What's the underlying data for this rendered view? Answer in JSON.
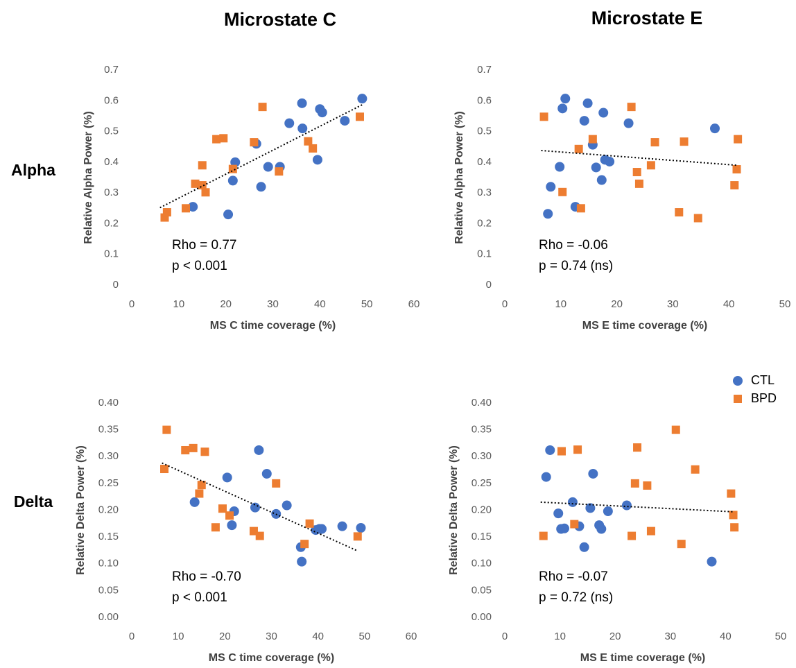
{
  "column_titles": [
    "Microstate C",
    "Microstate E"
  ],
  "row_labels": [
    "Alpha",
    "Delta"
  ],
  "chart_data": [
    {
      "type": "scatter",
      "x_label": "MS C time coverage (%)",
      "y_label": "Relative Alpha Power (%)",
      "annotations": [
        "Rho = 0.77",
        "p < 0.001"
      ],
      "xlim": [
        0,
        60
      ],
      "xticks": [
        0,
        10,
        20,
        30,
        40,
        50,
        60
      ],
      "ylim": [
        0,
        0.7
      ],
      "yticks": [
        0,
        0.1,
        0.2,
        0.3,
        0.4,
        0.5,
        0.6,
        0.7
      ],
      "series": [
        {
          "color": "#4472c4",
          "marker": "circle",
          "x": [
            13,
            20.5,
            21.5,
            22,
            26.5,
            27.5,
            29,
            31.5,
            33.5,
            36.2,
            36.3,
            39.5,
            40,
            40.5,
            45.3,
            49
          ],
          "values": [
            0.255,
            0.23,
            0.34,
            0.4,
            0.46,
            0.32,
            0.385,
            0.385,
            0.527,
            0.592,
            0.51,
            0.408,
            0.573,
            0.562,
            0.535,
            0.607
          ]
        },
        {
          "color": "#ed7d31",
          "marker": "square",
          "x": [
            7,
            7.5,
            11.5,
            13.5,
            15,
            15,
            15.7,
            18,
            19.5,
            21.5,
            26,
            27.8,
            31.3,
            37.5,
            38.5,
            48.5
          ],
          "values": [
            0.22,
            0.237,
            0.25,
            0.33,
            0.325,
            0.39,
            0.302,
            0.475,
            0.478,
            0.378,
            0.465,
            0.58,
            0.37,
            0.468,
            0.445,
            0.548
          ]
        }
      ],
      "trendline": {
        "x": [
          6,
          49
        ],
        "values": [
          0.252,
          0.587
        ],
        "style": "dotted"
      }
    },
    {
      "type": "scatter",
      "x_label": "MS E time coverage (%)",
      "y_label": "Relative Alpha Power (%)",
      "annotations": [
        "Rho = -0.06",
        "p = 0.74 (ns)"
      ],
      "xlim": [
        0,
        50
      ],
      "xticks": [
        0,
        10,
        20,
        30,
        40,
        50
      ],
      "ylim": [
        0,
        0.7
      ],
      "yticks": [
        0,
        0.1,
        0.2,
        0.3,
        0.4,
        0.5,
        0.6,
        0.7
      ],
      "series": [
        {
          "color": "#4472c4",
          "marker": "circle",
          "x": [
            7.7,
            8.2,
            9.8,
            10.3,
            10.8,
            12.6,
            14.2,
            14.8,
            15.7,
            16.3,
            17.3,
            17.6,
            17.9,
            18.7,
            22.1,
            37.5
          ],
          "values": [
            0.232,
            0.32,
            0.385,
            0.575,
            0.607,
            0.255,
            0.535,
            0.592,
            0.457,
            0.383,
            0.342,
            0.561,
            0.408,
            0.402,
            0.527,
            0.51
          ]
        },
        {
          "color": "#ed7d31",
          "marker": "square",
          "x": [
            7,
            10.3,
            13.2,
            13.6,
            15.7,
            22.6,
            23.6,
            24,
            26.1,
            26.8,
            31.1,
            32,
            34.5,
            41,
            41.4,
            41.6
          ],
          "values": [
            0.548,
            0.303,
            0.443,
            0.25,
            0.475,
            0.58,
            0.368,
            0.33,
            0.39,
            0.465,
            0.237,
            0.467,
            0.218,
            0.325,
            0.377,
            0.475
          ]
        }
      ],
      "trendline": {
        "x": [
          6.5,
          41.5
        ],
        "values": [
          0.438,
          0.39
        ],
        "style": "dotted"
      }
    },
    {
      "type": "scatter",
      "x_label": "MS C time coverage (%)",
      "y_label": "Relative Delta Power (%)",
      "annotations": [
        "Rho = -0.70",
        "p < 0.001"
      ],
      "xlim": [
        0,
        60
      ],
      "xticks": [
        0,
        10,
        20,
        30,
        40,
        50,
        60
      ],
      "ylim": [
        0,
        0.4
      ],
      "yticks": [
        {
          "value": 0,
          "label": "0.00"
        },
        {
          "value": 0.05,
          "label": "0.05"
        },
        {
          "value": 0.1,
          "label": "0.10"
        },
        {
          "value": 0.15,
          "label": "0.15"
        },
        {
          "value": 0.2,
          "label": "0.20"
        },
        {
          "value": 0.25,
          "label": "0.25"
        },
        {
          "value": 0.3,
          "label": "0.30"
        },
        {
          "value": 0.35,
          "label": "0.35"
        },
        {
          "value": 0.4,
          "label": "0.40"
        }
      ],
      "series": [
        {
          "color": "#4472c4",
          "marker": "circle",
          "x": [
            13.5,
            20.5,
            21.5,
            22,
            26.5,
            27.3,
            29,
            31,
            33.3,
            36.3,
            36.5,
            39.5,
            40.3,
            40.8,
            45.2,
            49.2
          ],
          "values": [
            0.215,
            0.261,
            0.172,
            0.198,
            0.205,
            0.312,
            0.268,
            0.193,
            0.209,
            0.131,
            0.104,
            0.163,
            0.165,
            0.165,
            0.17,
            0.167
          ]
        },
        {
          "color": "#ed7d31",
          "marker": "square",
          "x": [
            7,
            7.5,
            11.5,
            13.2,
            14.5,
            15,
            15.7,
            18,
            19.5,
            21,
            26.2,
            27.5,
            31,
            37.1,
            38.2,
            48.5
          ],
          "values": [
            0.277,
            0.35,
            0.312,
            0.316,
            0.231,
            0.247,
            0.309,
            0.168,
            0.203,
            0.19,
            0.161,
            0.152,
            0.25,
            0.137,
            0.175,
            0.151
          ]
        }
      ],
      "trendline": {
        "x": [
          6.5,
          48.5
        ],
        "values": [
          0.288,
          0.124
        ],
        "style": "dotted"
      }
    },
    {
      "type": "scatter",
      "x_label": "MS E time coverage (%)",
      "y_label": "Relative Delta Power (%)",
      "annotations": [
        "Rho = -0.07",
        "p = 0.72 (ns)"
      ],
      "xlim": [
        0,
        50
      ],
      "xticks": [
        0,
        10,
        20,
        30,
        40,
        50
      ],
      "ylim": [
        0,
        0.4
      ],
      "yticks": [
        {
          "value": 0,
          "label": "0.00"
        },
        {
          "value": 0.05,
          "label": "0.05"
        },
        {
          "value": 0.1,
          "label": "0.10"
        },
        {
          "value": 0.15,
          "label": "0.15"
        },
        {
          "value": 0.2,
          "label": "0.20"
        },
        {
          "value": 0.25,
          "label": "0.25"
        },
        {
          "value": 0.3,
          "label": "0.30"
        },
        {
          "value": 0.35,
          "label": "0.35"
        },
        {
          "value": 0.4,
          "label": "0.40"
        }
      ],
      "legend": "top-right",
      "series": [
        {
          "name": "CTL",
          "color": "#4472c4",
          "marker": "circle",
          "x": [
            7.5,
            8.2,
            9.7,
            10.2,
            10.8,
            12.3,
            13.5,
            14.4,
            15.5,
            16,
            17.1,
            17.5,
            18.7,
            22.1,
            37.5
          ],
          "values": [
            0.262,
            0.312,
            0.194,
            0.165,
            0.166,
            0.215,
            0.17,
            0.131,
            0.204,
            0.268,
            0.172,
            0.165,
            0.198,
            0.209,
            0.104
          ]
        },
        {
          "name": "BPD",
          "color": "#ed7d31",
          "marker": "square",
          "x": [
            7,
            10.3,
            12.6,
            13.2,
            23,
            23.6,
            24,
            25.8,
            26.5,
            31,
            32,
            34.5,
            41,
            41.4,
            41.6
          ],
          "values": [
            0.152,
            0.31,
            0.174,
            0.313,
            0.152,
            0.25,
            0.317,
            0.246,
            0.161,
            0.35,
            0.137,
            0.276,
            0.231,
            0.191,
            0.168
          ]
        }
      ],
      "trendline": {
        "x": [
          6.5,
          41.5
        ],
        "values": [
          0.215,
          0.197
        ],
        "style": "dotted"
      }
    }
  ]
}
